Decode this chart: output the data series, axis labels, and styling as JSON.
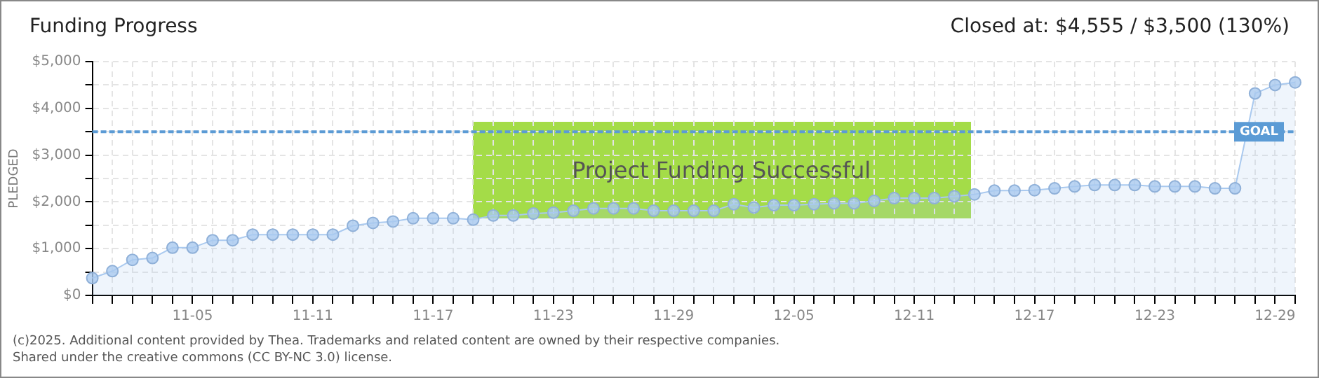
{
  "chart_data": {
    "type": "area",
    "title": "Funding Progress",
    "subtitle": "Closed at: $4,555 / $3,500 (130%)",
    "ylabel": "PLEDGED",
    "categories": [
      null,
      null,
      null,
      null,
      null,
      "11-05",
      null,
      null,
      null,
      null,
      null,
      "11-11",
      null,
      null,
      null,
      null,
      null,
      "11-17",
      null,
      null,
      null,
      null,
      null,
      "11-23",
      null,
      null,
      null,
      null,
      null,
      "11-29",
      null,
      null,
      null,
      null,
      null,
      "12-05",
      null,
      null,
      null,
      null,
      null,
      "12-11",
      null,
      null,
      null,
      null,
      null,
      "12-17",
      null,
      null,
      null,
      null,
      null,
      "12-23",
      null,
      null,
      null,
      null,
      null,
      "12-29",
      null
    ],
    "series": [
      {
        "color": "#a9c9ef",
        "values": [
          370,
          520,
          760,
          800,
          1020,
          1020,
          1180,
          1180,
          1300,
          1300,
          1300,
          1300,
          1300,
          1490,
          1550,
          1580,
          1650,
          1650,
          1650,
          1620,
          1710,
          1710,
          1750,
          1770,
          1810,
          1860,
          1860,
          1860,
          1810,
          1810,
          1810,
          1810,
          1950,
          1880,
          1930,
          1930,
          1950,
          1970,
          1970,
          2020,
          2080,
          2080,
          2080,
          2120,
          2160,
          2240,
          2240,
          2250,
          2290,
          2330,
          2360,
          2360,
          2360,
          2330,
          2330,
          2330,
          2290,
          2290,
          4320,
          4500,
          4555
        ]
      }
    ],
    "ylim": [
      0,
      5000
    ],
    "yticks": [
      {
        "value": 0,
        "label": "$0"
      },
      {
        "value": 500,
        "label": null
      },
      {
        "value": 1000,
        "label": "$1,000"
      },
      {
        "value": 1500,
        "label": null
      },
      {
        "value": 2000,
        "label": "$2,000"
      },
      {
        "value": 2500,
        "label": null
      },
      {
        "value": 3000,
        "label": "$3,000"
      },
      {
        "value": 3500,
        "label": null
      },
      {
        "value": 4000,
        "label": "$4,000"
      },
      {
        "value": 4500,
        "label": null
      },
      {
        "value": 5000,
        "label": "$5,000"
      }
    ],
    "ref_lines": [
      {
        "axis": "y",
        "value": 3500,
        "label": "GOAL",
        "color": "#5b9bd5",
        "line_style": "dashed"
      }
    ],
    "annotations": [
      "Project Funding Successful",
      "(c)2025. Additional content provided by Thea. Trademarks and related content are owned by their respective companies.",
      "Shared under the creative commons (CC BY-NC 3.0) license."
    ],
    "grid": true,
    "legend": false,
    "marker": "circle"
  }
}
